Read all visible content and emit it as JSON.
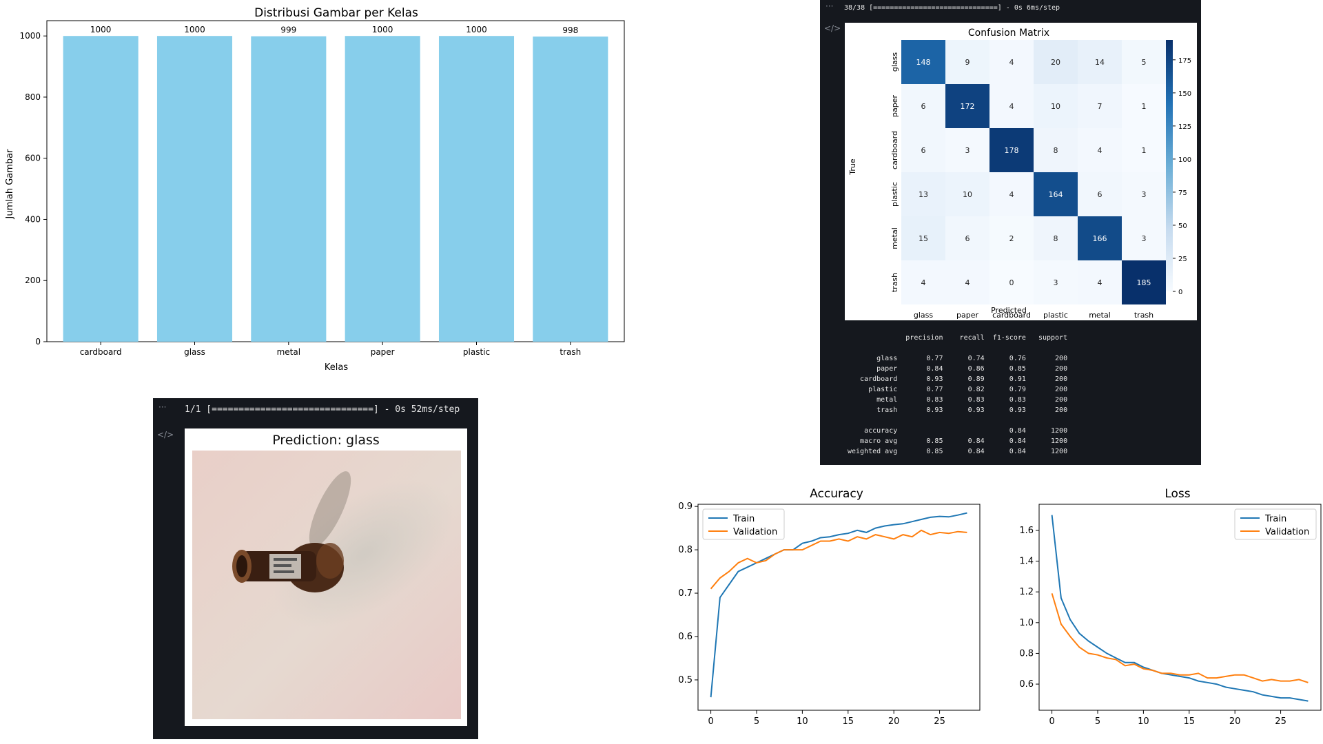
{
  "chart_data": [
    {
      "id": "distribution",
      "type": "bar",
      "title": "Distribusi Gambar per Kelas",
      "xlabel": "Kelas",
      "ylabel": "Jumlah Gambar",
      "categories": [
        "cardboard",
        "glass",
        "metal",
        "paper",
        "plastic",
        "trash"
      ],
      "values": [
        1000,
        1000,
        999,
        1000,
        1000,
        998
      ],
      "ylim": [
        0,
        1050
      ],
      "yticks": [
        0,
        200,
        400,
        600,
        800,
        1000
      ],
      "bar_color": "#87ceeb",
      "grid": false
    },
    {
      "id": "confusion",
      "type": "heatmap",
      "title": "Confusion Matrix",
      "xlabel": "Predicted",
      "ylabel": "True",
      "labels": [
        "glass",
        "paper",
        "cardboard",
        "plastic",
        "metal",
        "trash"
      ],
      "matrix": [
        [
          148,
          9,
          4,
          20,
          14,
          5
        ],
        [
          6,
          172,
          4,
          10,
          7,
          1
        ],
        [
          6,
          3,
          178,
          8,
          4,
          1
        ],
        [
          13,
          10,
          4,
          164,
          6,
          3
        ],
        [
          15,
          6,
          2,
          8,
          166,
          3
        ],
        [
          4,
          4,
          0,
          3,
          4,
          185
        ]
      ],
      "colorbar_ticks": [
        0,
        25,
        50,
        75,
        100,
        125,
        150,
        175
      ],
      "colormap": "Blues"
    },
    {
      "id": "accuracy",
      "type": "line",
      "title": "Accuracy",
      "xlabel": "",
      "ylabel": "",
      "x": [
        0,
        1,
        2,
        3,
        4,
        5,
        6,
        7,
        8,
        9,
        10,
        11,
        12,
        13,
        14,
        15,
        16,
        17,
        18,
        19,
        20,
        21,
        22,
        23,
        24,
        25,
        26,
        27,
        28
      ],
      "series": [
        {
          "name": "Train",
          "color": "#1f77b4",
          "values": [
            0.46,
            0.69,
            0.72,
            0.75,
            0.76,
            0.77,
            0.78,
            0.79,
            0.8,
            0.8,
            0.815,
            0.82,
            0.828,
            0.83,
            0.835,
            0.838,
            0.845,
            0.84,
            0.85,
            0.855,
            0.858,
            0.86,
            0.865,
            0.87,
            0.875,
            0.877,
            0.876,
            0.88,
            0.885
          ]
        },
        {
          "name": "Validation",
          "color": "#ff7f0e",
          "values": [
            0.71,
            0.735,
            0.75,
            0.77,
            0.78,
            0.77,
            0.775,
            0.79,
            0.8,
            0.8,
            0.8,
            0.81,
            0.82,
            0.82,
            0.825,
            0.82,
            0.83,
            0.825,
            0.835,
            0.83,
            0.825,
            0.835,
            0.83,
            0.845,
            0.835,
            0.84,
            0.838,
            0.842,
            0.84
          ]
        }
      ],
      "ylim": [
        0.43,
        0.905
      ],
      "xlim": [
        -1.4,
        29.4
      ],
      "yticks": [
        0.5,
        0.6,
        0.7,
        0.8,
        0.9
      ],
      "xticks": [
        0,
        5,
        10,
        15,
        20,
        25
      ],
      "legend": "upper-left",
      "grid": false
    },
    {
      "id": "loss",
      "type": "line",
      "title": "Loss",
      "xlabel": "",
      "ylabel": "",
      "x": [
        0,
        1,
        2,
        3,
        4,
        5,
        6,
        7,
        8,
        9,
        10,
        11,
        12,
        13,
        14,
        15,
        16,
        17,
        18,
        19,
        20,
        21,
        22,
        23,
        24,
        25,
        26,
        27,
        28
      ],
      "series": [
        {
          "name": "Train",
          "color": "#1f77b4",
          "values": [
            1.7,
            1.16,
            1.02,
            0.93,
            0.88,
            0.84,
            0.8,
            0.77,
            0.74,
            0.74,
            0.71,
            0.69,
            0.67,
            0.66,
            0.65,
            0.64,
            0.62,
            0.61,
            0.6,
            0.58,
            0.57,
            0.56,
            0.55,
            0.53,
            0.52,
            0.51,
            0.51,
            0.5,
            0.49
          ]
        },
        {
          "name": "Validation",
          "color": "#ff7f0e",
          "values": [
            1.19,
            0.99,
            0.91,
            0.84,
            0.8,
            0.79,
            0.77,
            0.76,
            0.72,
            0.73,
            0.7,
            0.69,
            0.67,
            0.67,
            0.66,
            0.66,
            0.67,
            0.64,
            0.64,
            0.65,
            0.66,
            0.66,
            0.64,
            0.62,
            0.63,
            0.62,
            0.62,
            0.63,
            0.61
          ]
        }
      ],
      "ylim": [
        0.43,
        1.77
      ],
      "xlim": [
        -1.4,
        29.4
      ],
      "yticks": [
        0.6,
        0.8,
        1.0,
        1.2,
        1.4,
        1.6
      ],
      "xticks": [
        0,
        5,
        10,
        15,
        20,
        25
      ],
      "legend": "upper-right",
      "grid": false
    }
  ],
  "notebook": {
    "cell_menu_icon": "ellipsis-icon",
    "cell_code_icon": "code-icon",
    "confusion_progress": "38/38 [==============================] - 0s 6ms/step",
    "prediction_progress": "1/1 [==============================] - 0s 52ms/step",
    "prediction_title": "Prediction: glass",
    "report": {
      "header": [
        "precision",
        "recall",
        "f1-score",
        "support"
      ],
      "rows": [
        {
          "label": "glass",
          "values": [
            "0.77",
            "0.74",
            "0.76",
            "200"
          ]
        },
        {
          "label": "paper",
          "values": [
            "0.84",
            "0.86",
            "0.85",
            "200"
          ]
        },
        {
          "label": "cardboard",
          "values": [
            "0.93",
            "0.89",
            "0.91",
            "200"
          ]
        },
        {
          "label": "plastic",
          "values": [
            "0.77",
            "0.82",
            "0.79",
            "200"
          ]
        },
        {
          "label": "metal",
          "values": [
            "0.83",
            "0.83",
            "0.83",
            "200"
          ]
        },
        {
          "label": "trash",
          "values": [
            "0.93",
            "0.93",
            "0.93",
            "200"
          ]
        }
      ],
      "summary": [
        {
          "label": "accuracy",
          "values": [
            "",
            "",
            "0.84",
            "1200"
          ]
        },
        {
          "label": "macro avg",
          "values": [
            "0.85",
            "0.84",
            "0.84",
            "1200"
          ]
        },
        {
          "label": "weighted avg",
          "values": [
            "0.85",
            "0.84",
            "0.84",
            "1200"
          ]
        }
      ]
    }
  }
}
